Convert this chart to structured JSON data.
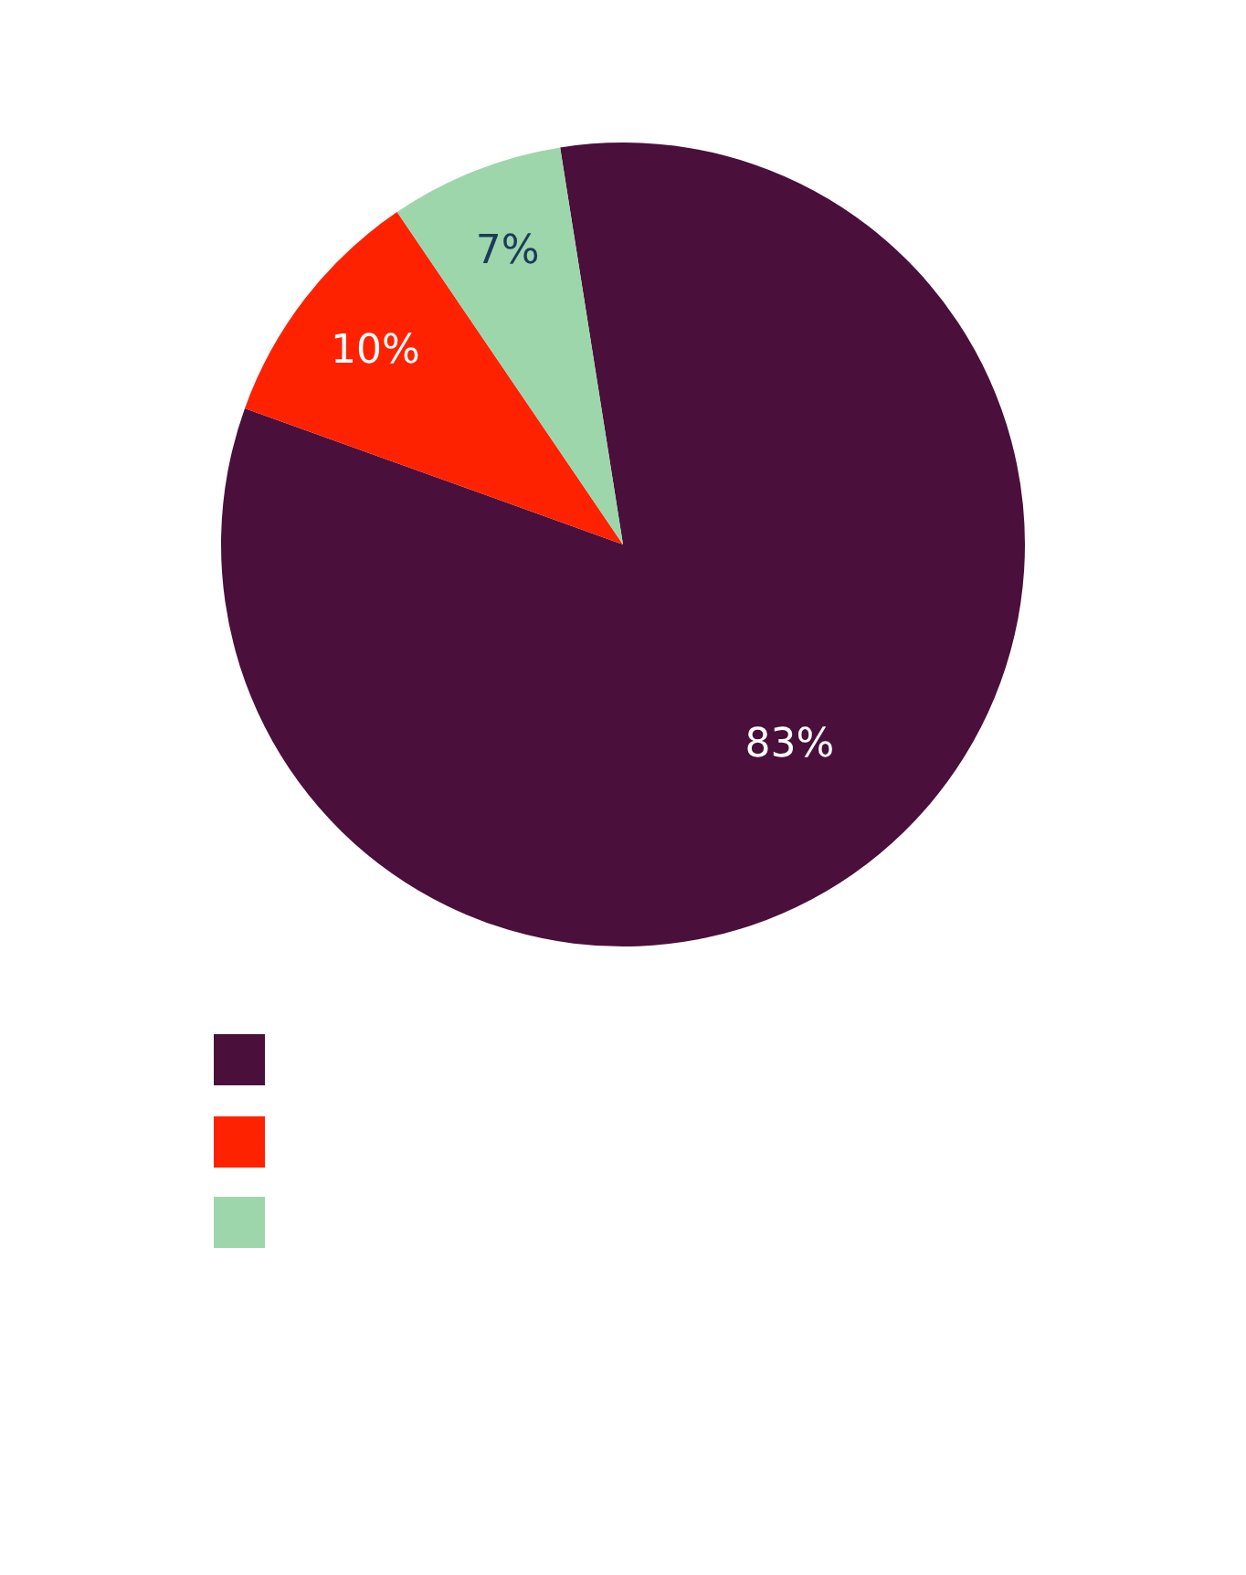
{
  "chart_data": {
    "type": "pie",
    "categories": [
      null,
      null,
      null
    ],
    "values": [
      83,
      10,
      7
    ],
    "colors": [
      "#4a0f3a",
      "#ff2200",
      "#9dd6aa"
    ],
    "value_labels": [
      "83%",
      "10%",
      "7%"
    ]
  }
}
